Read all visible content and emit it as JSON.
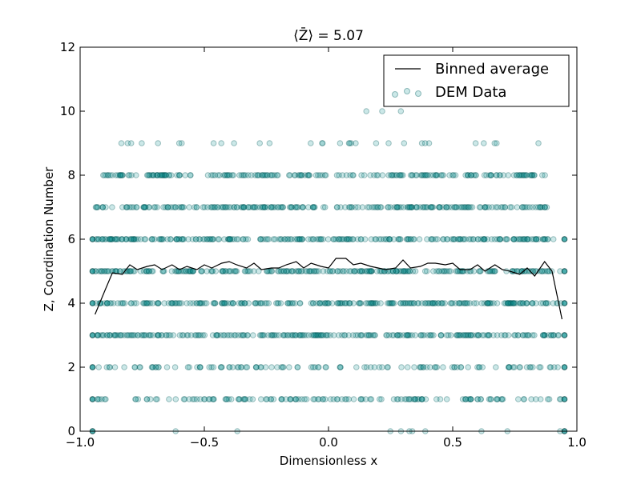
{
  "chart_data": {
    "type": "scatter",
    "title": "⟨Z̄⟩ = 5.07",
    "xlabel": "Dimensionless x",
    "ylabel": "Z, Coordination Number",
    "xlim": [
      -1.0,
      1.0
    ],
    "ylim": [
      0,
      12
    ],
    "xticks": [
      -1.0,
      -0.5,
      0.0,
      0.5,
      1.0
    ],
    "xtick_labels": [
      "−1.0",
      "−0.5",
      "0.0",
      "0.5",
      "1.0"
    ],
    "yticks": [
      0,
      2,
      4,
      6,
      8,
      10,
      12
    ],
    "ytick_labels": [
      "0",
      "2",
      "4",
      "6",
      "8",
      "10",
      "12"
    ],
    "grid": false,
    "legend": {
      "placement": "top-right",
      "entries": [
        "Binned average",
        "DEM Data"
      ]
    },
    "colors": {
      "scatter": "#008b8b",
      "line": "#000000"
    },
    "series": [
      {
        "name": "DEM Data",
        "kind": "scatter",
        "levels": [
          {
            "z": 0,
            "density": 0.04,
            "xmin": -0.94,
            "xmax": 0.94
          },
          {
            "z": 1,
            "density": 0.55,
            "xmin": -0.94,
            "xmax": 0.94
          },
          {
            "z": 2,
            "density": 0.45,
            "xmin": -0.94,
            "xmax": 0.94
          },
          {
            "z": 3,
            "density": 0.95,
            "xmin": -0.94,
            "xmax": 0.94
          },
          {
            "z": 4,
            "density": 1.0,
            "xmin": -0.94,
            "xmax": 0.94
          },
          {
            "z": 5,
            "density": 1.0,
            "xmin": -0.94,
            "xmax": 0.94
          },
          {
            "z": 6,
            "density": 1.0,
            "xmin": -0.94,
            "xmax": 0.94
          },
          {
            "z": 7,
            "density": 0.9,
            "xmin": -0.94,
            "xmax": 0.88
          },
          {
            "z": 8,
            "density": 0.8,
            "xmin": -0.91,
            "xmax": 0.88
          },
          {
            "z": 9,
            "density": 0.12,
            "xmin": -0.88,
            "xmax": 0.87
          },
          {
            "z": 10,
            "density": 0.01,
            "xmin": 0.1,
            "xmax": 0.72
          }
        ]
      },
      {
        "name": "Binned average",
        "kind": "line",
        "x": [
          -0.94,
          -0.9,
          -0.87,
          -0.83,
          -0.8,
          -0.77,
          -0.73,
          -0.7,
          -0.67,
          -0.63,
          -0.6,
          -0.57,
          -0.53,
          -0.5,
          -0.47,
          -0.43,
          -0.4,
          -0.37,
          -0.33,
          -0.3,
          -0.27,
          -0.23,
          -0.2,
          -0.17,
          -0.13,
          -0.1,
          -0.07,
          -0.03,
          0.0,
          0.03,
          0.07,
          0.1,
          0.13,
          0.17,
          0.2,
          0.23,
          0.27,
          0.3,
          0.33,
          0.37,
          0.4,
          0.43,
          0.47,
          0.5,
          0.53,
          0.57,
          0.6,
          0.63,
          0.67,
          0.7,
          0.73,
          0.77,
          0.8,
          0.83,
          0.87,
          0.9,
          0.94
        ],
        "y": [
          3.65,
          4.4,
          4.95,
          4.9,
          5.2,
          5.05,
          5.15,
          5.2,
          5.05,
          5.2,
          5.05,
          5.15,
          5.05,
          5.2,
          5.1,
          5.25,
          5.3,
          5.2,
          5.1,
          5.25,
          5.05,
          5.1,
          5.1,
          5.2,
          5.3,
          5.1,
          5.25,
          5.15,
          5.1,
          5.4,
          5.4,
          5.2,
          5.25,
          5.15,
          5.1,
          5.05,
          5.1,
          5.35,
          5.1,
          5.15,
          5.25,
          5.25,
          5.2,
          5.25,
          5.05,
          5.05,
          5.2,
          5.0,
          5.2,
          5.05,
          5.0,
          4.9,
          5.1,
          4.85,
          5.3,
          5.0,
          3.5
        ]
      }
    ]
  }
}
